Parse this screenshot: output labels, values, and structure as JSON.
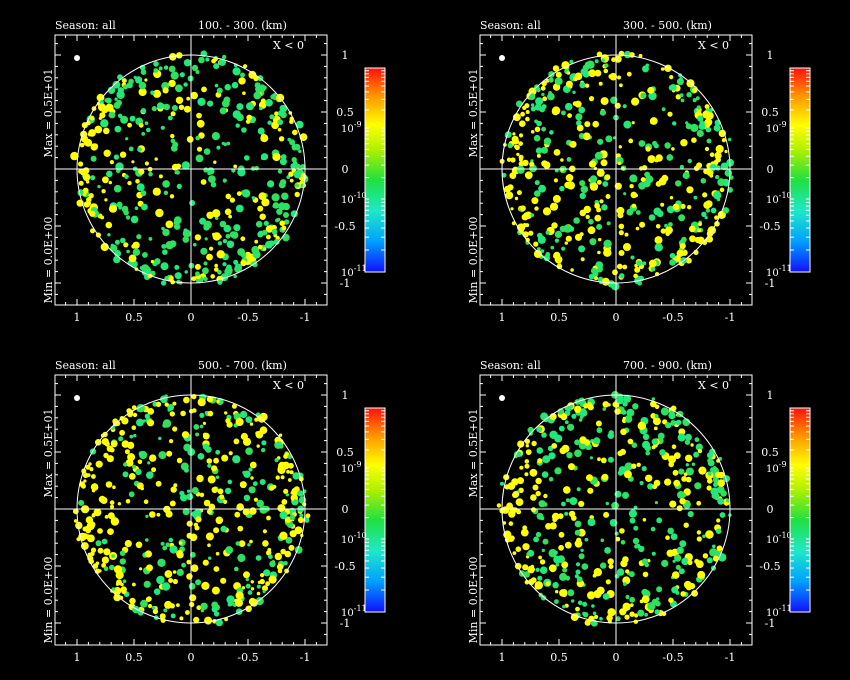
{
  "chart_data": [
    {
      "type": "scatter",
      "season_label": "Season: all",
      "range_label": "100. -   300. (km)",
      "side_label": "X < 0",
      "max_label": "Max = 0.5E+01",
      "min_label": "Min = 0.0E+00",
      "xlim": [
        1.2,
        -1.2
      ],
      "ylim": [
        -1.2,
        1.2
      ],
      "xticks": [
        "1",
        "0.5",
        "0",
        "-0.5",
        "-1"
      ],
      "yticks": [
        "1",
        "0.5",
        "0",
        "-0.5",
        "-1"
      ],
      "colorbar": {
        "scale": "log",
        "range": [
          1e-11,
          1e-08
        ],
        "ticks": [
          "10-9",
          "10-10",
          "10-11"
        ]
      },
      "dominant_colors": [
        "#ffff00",
        "#22e87a"
      ],
      "points_visible": "approximately 700 per panel (density representation)"
    },
    {
      "type": "scatter",
      "season_label": "Season: all",
      "range_label": "300. -   500. (km)",
      "side_label": "X < 0",
      "max_label": "Max = 0.5E+01",
      "min_label": "Min = 0.0E+00",
      "xlim": [
        1.2,
        -1.2
      ],
      "ylim": [
        -1.2,
        1.2
      ],
      "xticks": [
        "1",
        "0.5",
        "0",
        "-0.5",
        "-1"
      ],
      "yticks": [
        "1",
        "0.5",
        "0",
        "-0.5",
        "-1"
      ],
      "colorbar": {
        "scale": "log",
        "range": [
          1e-11,
          1e-08
        ],
        "ticks": [
          "10-9",
          "10-10",
          "10-11"
        ]
      },
      "dominant_colors": [
        "#ffff00",
        "#22e87a"
      ]
    },
    {
      "type": "scatter",
      "season_label": "Season: all",
      "range_label": "500. -   700. (km)",
      "side_label": "X < 0",
      "max_label": "Max = 0.5E+01",
      "min_label": "Min = 0.0E+00",
      "xlim": [
        1.2,
        -1.2
      ],
      "ylim": [
        -1.2,
        1.2
      ],
      "xticks": [
        "1",
        "0.5",
        "0",
        "-0.5",
        "-1"
      ],
      "yticks": [
        "1",
        "0.5",
        "0",
        "-0.5",
        "-1"
      ],
      "colorbar": {
        "scale": "log",
        "range": [
          1e-11,
          1e-08
        ],
        "ticks": [
          "10-9",
          "10-10",
          "10-11"
        ]
      },
      "dominant_colors": [
        "#ffff00",
        "#22e87a"
      ]
    },
    {
      "type": "scatter",
      "season_label": "Season: all",
      "range_label": "700. -   900. (km)",
      "side_label": "X < 0",
      "max_label": "Max = 0.5E+01",
      "min_label": "Min = 0.0E+00",
      "xlim": [
        1.2,
        -1.2
      ],
      "ylim": [
        -1.2,
        1.2
      ],
      "xticks": [
        "1",
        "0.5",
        "0",
        "-0.5",
        "-1"
      ],
      "yticks": [
        "1",
        "0.5",
        "0",
        "-0.5",
        "-1"
      ],
      "colorbar": {
        "scale": "log",
        "range": [
          1e-11,
          1e-08
        ],
        "ticks": [
          "10-9",
          "10-10",
          "10-11"
        ]
      },
      "dominant_colors": [
        "#ffff00",
        "#22e87a"
      ]
    }
  ]
}
